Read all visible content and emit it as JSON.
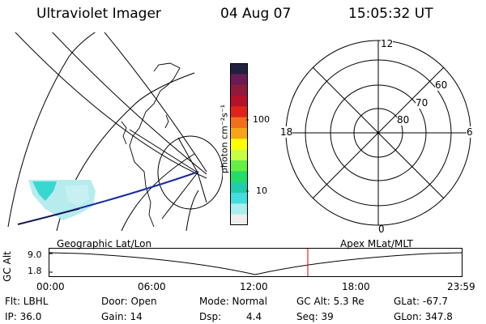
{
  "header": {
    "instrument": "Ultraviolet Imager",
    "date": "04 Aug 07",
    "time": "15:05:32 UT"
  },
  "colorbar": {
    "label": "photon cm⁻²s⁻¹",
    "tick_labels": [
      "100",
      "10"
    ],
    "colors": [
      "#202040",
      "#6a1a55",
      "#8e1a3c",
      "#b5122a",
      "#e0241c",
      "#f2701a",
      "#f6a518",
      "#ffff00",
      "#c8ff44",
      "#66ee44",
      "#22dd66",
      "#22ccaa",
      "#44dddd",
      "#aaeeee",
      "#eeeeee"
    ]
  },
  "polar_plot": {
    "mlt_labels": {
      "top": "12",
      "left": "18",
      "right": "6",
      "bottom": "0"
    },
    "lat_labels": [
      "60",
      "70",
      "80"
    ]
  },
  "timeline": {
    "left_label": "Geographic Lat/Lon",
    "right_label": "Apex MLat/MLT",
    "axis_label": "GC Alt",
    "y_ticks": [
      "9.0",
      "1.8"
    ],
    "time_ticks": [
      "00:00",
      "06:00",
      "12:00",
      "18:00",
      "23:59"
    ],
    "marker_color": "#dd0000"
  },
  "footer": {
    "row1": {
      "filter": "Flt: LBHL",
      "door": "Door: Open",
      "mode": "Mode: Normal",
      "gc_alt": "GC Alt: 5.3 Re",
      "glat": "GLat: -67.7"
    },
    "row2": {
      "ip": "IP: 36.0",
      "gain": "Gain: 14",
      "dsp_label": "Dsp:",
      "dsp_value": "4.4",
      "seq": "Seq: 39",
      "glon": "GLon: 347.8"
    }
  }
}
